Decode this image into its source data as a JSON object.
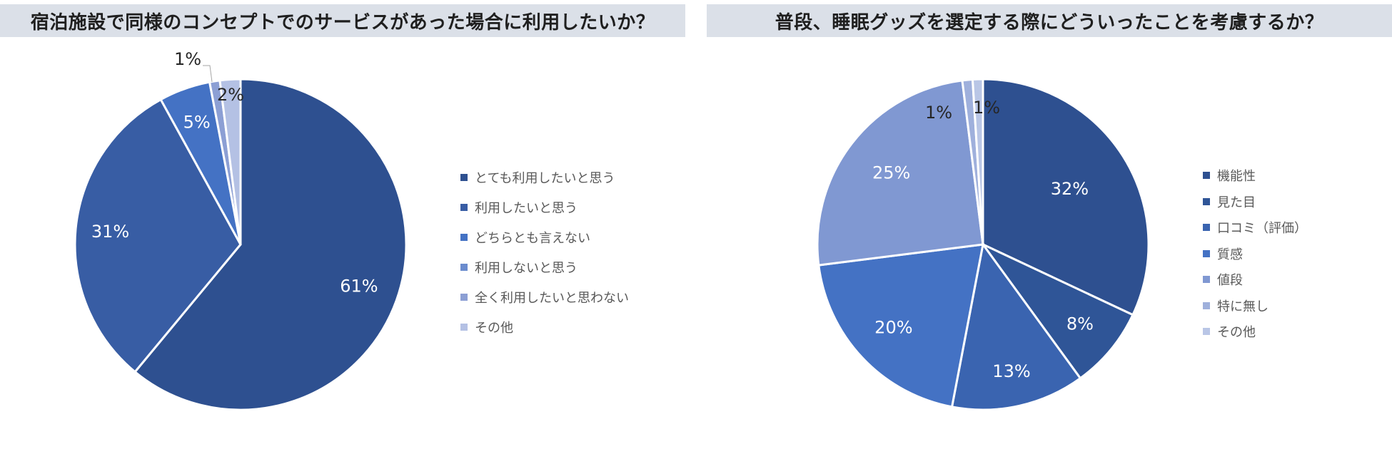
{
  "chart_data": [
    {
      "type": "pie",
      "title": "宿泊施設で同様のコンセプトでのサービスがあった場合に利用したいか？",
      "categories": [
        "とても利用したいと思う",
        "利用したいと思う",
        "どちらとも言えない",
        "利用しないと思う",
        "全く利用したいと思わない",
        "その他"
      ],
      "values": [
        61,
        31,
        5,
        0,
        1,
        2
      ],
      "labels": [
        "61%",
        "31%",
        "5%",
        "",
        "1%",
        "2%"
      ],
      "colors": [
        "#2e5090",
        "#385da4",
        "#4472c4",
        "#6b8cce",
        "#8c9fd4",
        "#b4c1e4"
      ],
      "legend_position": "right"
    },
    {
      "type": "pie",
      "title": "普段、睡眠グッズを選定する際にどういったことを考慮するか？",
      "categories": [
        "機能性",
        "見た目",
        "口コミ（評価）",
        "質感",
        "値段",
        "特に無し",
        "その他"
      ],
      "values": [
        32,
        8,
        13,
        20,
        25,
        1,
        1
      ],
      "labels": [
        "32%",
        "8%",
        "13%",
        "20%",
        "25%",
        "1%",
        "1%"
      ],
      "colors": [
        "#2e5090",
        "#2f5597",
        "#3a64b0",
        "#4472c4",
        "#8098d2",
        "#9fb0dc",
        "#b9c6e6"
      ],
      "legend_position": "right"
    }
  ]
}
